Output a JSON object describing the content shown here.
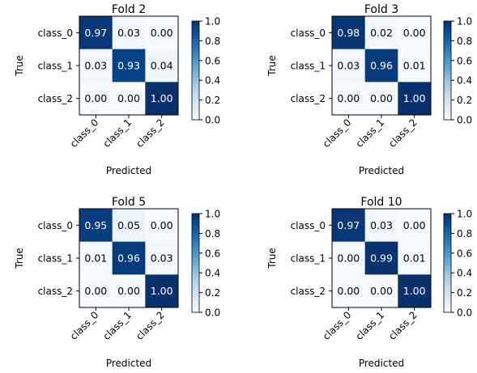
{
  "chart_data": [
    {
      "type": "heatmap",
      "title": "Fold 2",
      "xlabel": "Predicted",
      "ylabel": "True",
      "x_categories": [
        "class_0",
        "class_1",
        "class_2"
      ],
      "y_categories": [
        "class_0",
        "class_1",
        "class_2"
      ],
      "values": [
        [
          0.97,
          0.03,
          0.0
        ],
        [
          0.03,
          0.93,
          0.04
        ],
        [
          0.0,
          0.0,
          1.0
        ]
      ],
      "value_labels": [
        [
          "0.97",
          "0.03",
          "0.00"
        ],
        [
          "0.03",
          "0.93",
          "0.04"
        ],
        [
          "0.00",
          "0.00",
          "1.00"
        ]
      ],
      "colorbar": {
        "range": [
          0,
          1
        ],
        "ticks": [
          "0.0",
          "0.2",
          "0.4",
          "0.6",
          "0.8",
          "1.0"
        ],
        "colormap": "Blues"
      }
    },
    {
      "type": "heatmap",
      "title": "Fold 3",
      "xlabel": "Predicted",
      "ylabel": "True",
      "x_categories": [
        "class_0",
        "class_1",
        "class_2"
      ],
      "y_categories": [
        "class_0",
        "class_1",
        "class_2"
      ],
      "values": [
        [
          0.98,
          0.02,
          0.0
        ],
        [
          0.03,
          0.96,
          0.01
        ],
        [
          0.0,
          0.0,
          1.0
        ]
      ],
      "value_labels": [
        [
          "0.98",
          "0.02",
          "0.00"
        ],
        [
          "0.03",
          "0.96",
          "0.01"
        ],
        [
          "0.00",
          "0.00",
          "1.00"
        ]
      ],
      "colorbar": {
        "range": [
          0,
          1
        ],
        "ticks": [
          "0.0",
          "0.2",
          "0.4",
          "0.6",
          "0.8",
          "1.0"
        ],
        "colormap": "Blues"
      }
    },
    {
      "type": "heatmap",
      "title": "Fold 5",
      "xlabel": "Predicted",
      "ylabel": "True",
      "x_categories": [
        "class_0",
        "class_1",
        "class_2"
      ],
      "y_categories": [
        "class_0",
        "class_1",
        "class_2"
      ],
      "values": [
        [
          0.95,
          0.05,
          0.0
        ],
        [
          0.01,
          0.96,
          0.03
        ],
        [
          0.0,
          0.0,
          1.0
        ]
      ],
      "value_labels": [
        [
          "0.95",
          "0.05",
          "0.00"
        ],
        [
          "0.01",
          "0.96",
          "0.03"
        ],
        [
          "0.00",
          "0.00",
          "1.00"
        ]
      ],
      "colorbar": {
        "range": [
          0,
          1
        ],
        "ticks": [
          "0.0",
          "0.2",
          "0.4",
          "0.6",
          "0.8",
          "1.0"
        ],
        "colormap": "Blues"
      }
    },
    {
      "type": "heatmap",
      "title": "Fold 10",
      "xlabel": "Predicted",
      "ylabel": "True",
      "x_categories": [
        "class_0",
        "class_1",
        "class_2"
      ],
      "y_categories": [
        "class_0",
        "class_1",
        "class_2"
      ],
      "values": [
        [
          0.97,
          0.03,
          0.0
        ],
        [
          0.0,
          0.99,
          0.01
        ],
        [
          0.0,
          0.0,
          1.0
        ]
      ],
      "value_labels": [
        [
          "0.97",
          "0.03",
          "0.00"
        ],
        [
          "0.00",
          "0.99",
          "0.01"
        ],
        [
          "0.00",
          "0.00",
          "1.00"
        ]
      ],
      "colorbar": {
        "range": [
          0,
          1
        ],
        "ticks": [
          "0.0",
          "0.2",
          "0.4",
          "0.6",
          "0.8",
          "1.0"
        ],
        "colormap": "Blues"
      }
    }
  ]
}
